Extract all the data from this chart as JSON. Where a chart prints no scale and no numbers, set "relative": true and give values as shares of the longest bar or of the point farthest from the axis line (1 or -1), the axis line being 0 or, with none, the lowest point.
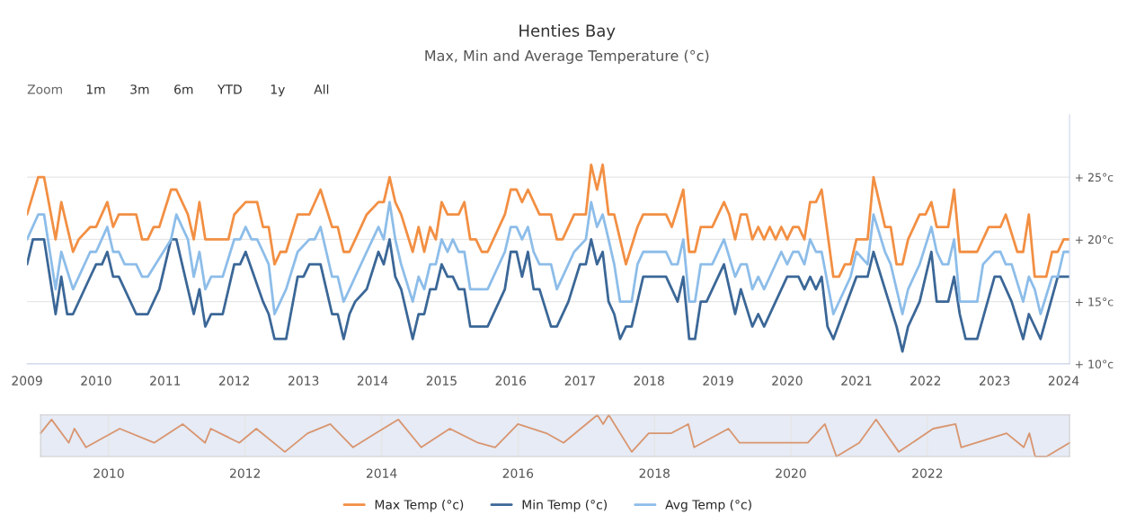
{
  "chart_data": [
    {
      "type": "line",
      "title": "Henties Bay",
      "subtitle": "Max, Min and Average Temperature (°c)",
      "annotations": [
        "Zoom",
        "1m",
        "3m",
        "6m",
        "YTD",
        "1y",
        "All"
      ],
      "xlim": [
        "2009-01",
        "2024-02"
      ],
      "xticks": [
        "2009",
        "2010",
        "2011",
        "2012",
        "2013",
        "2014",
        "2015",
        "2016",
        "2017",
        "2018",
        "2019",
        "2020",
        "2021",
        "2022",
        "2023",
        "2024"
      ],
      "ylim": [
        10,
        30
      ],
      "yticks": [
        {
          "value": 10,
          "label": "+ 10°c"
        },
        {
          "value": 15,
          "label": "+ 15°c"
        },
        {
          "value": 20,
          "label": "+ 20°c"
        },
        {
          "value": 25,
          "label": "+ 25°c"
        }
      ],
      "grid": "y",
      "legend": "bottom",
      "marker": "none",
      "line_style": "solid",
      "series": [
        {
          "name": "Max Temp (°c)",
          "color": "#f28f43",
          "x": [
            "2009-01",
            "2009-03",
            "2009-04",
            "2009-06",
            "2009-07",
            "2009-09",
            "2009-10",
            "2009-12",
            "2010-01",
            "2010-03",
            "2010-04",
            "2010-05",
            "2010-08",
            "2010-09",
            "2010-10",
            "2010-11",
            "2010-12",
            "2011-02",
            "2011-03",
            "2011-05",
            "2011-06",
            "2011-07",
            "2011-08",
            "2011-12",
            "2012-01",
            "2012-03",
            "2012-05",
            "2012-06",
            "2012-07",
            "2012-08",
            "2012-09",
            "2012-10",
            "2012-12",
            "2013-02",
            "2013-04",
            "2013-06",
            "2013-07",
            "2013-08",
            "2013-09",
            "2013-12",
            "2014-02",
            "2014-03",
            "2014-04",
            "2014-05",
            "2014-06",
            "2014-08",
            "2014-09",
            "2014-10",
            "2014-11",
            "2014-12",
            "2015-01",
            "2015-02",
            "2015-04",
            "2015-05",
            "2015-06",
            "2015-07",
            "2015-08",
            "2015-09",
            "2015-12",
            "2016-01",
            "2016-02",
            "2016-03",
            "2016-04",
            "2016-06",
            "2016-08",
            "2016-09",
            "2016-10",
            "2016-12",
            "2017-02",
            "2017-03",
            "2017-04",
            "2017-05",
            "2017-06",
            "2017-07",
            "2017-09",
            "2017-11",
            "2017-12",
            "2018-04",
            "2018-05",
            "2018-07",
            "2018-08",
            "2018-09",
            "2018-10",
            "2018-12",
            "2019-02",
            "2019-03",
            "2019-04",
            "2019-05",
            "2019-06",
            "2019-07",
            "2019-08",
            "2019-09",
            "2019-10",
            "2019-11",
            "2019-12",
            "2020-01",
            "2020-02",
            "2020-03",
            "2020-04",
            "2020-05",
            "2020-06",
            "2020-07",
            "2020-09",
            "2020-10",
            "2020-11",
            "2020-12",
            "2021-01",
            "2021-03",
            "2021-04",
            "2021-06",
            "2021-07",
            "2021-08",
            "2021-09",
            "2021-10",
            "2021-12",
            "2022-01",
            "2022-02",
            "2022-03",
            "2022-05",
            "2022-06",
            "2022-07",
            "2022-10",
            "2022-12",
            "2023-02",
            "2023-03",
            "2023-05",
            "2023-06",
            "2023-07",
            "2023-08",
            "2023-10",
            "2023-11",
            "2023-12",
            "2024-01",
            "2024-02"
          ],
          "values": [
            22,
            25,
            25,
            20,
            23,
            19,
            20,
            21,
            21,
            23,
            21,
            22,
            22,
            20,
            20,
            21,
            21,
            24,
            24,
            22,
            20,
            23,
            20,
            20,
            22,
            23,
            23,
            21,
            21,
            18,
            19,
            19,
            22,
            22,
            24,
            21,
            21,
            19,
            19,
            22,
            23,
            23,
            25,
            23,
            22,
            19,
            21,
            19,
            21,
            20,
            23,
            22,
            22,
            23,
            20,
            20,
            19,
            19,
            22,
            24,
            24,
            23,
            24,
            22,
            22,
            20,
            20,
            22,
            22,
            26,
            24,
            26,
            22,
            22,
            18,
            21,
            22,
            22,
            21,
            24,
            19,
            19,
            21,
            21,
            23,
            22,
            20,
            22,
            22,
            20,
            21,
            20,
            21,
            20,
            21,
            20,
            21,
            21,
            20,
            23,
            23,
            24,
            17,
            17,
            18,
            18,
            20,
            20,
            25,
            21,
            21,
            18,
            18,
            20,
            22,
            22,
            23,
            21,
            21,
            24,
            19,
            19,
            21,
            21,
            22,
            19,
            19,
            22,
            17,
            17,
            19,
            19,
            20,
            20
          ]
        },
        {
          "name": "Min Temp (°c)",
          "color": "#3b6797",
          "x": [
            "2009-01",
            "2009-02",
            "2009-04",
            "2009-06",
            "2009-07",
            "2009-08",
            "2009-09",
            "2009-12",
            "2010-01",
            "2010-02",
            "2010-03",
            "2010-04",
            "2010-05",
            "2010-08",
            "2010-10",
            "2010-12",
            "2011-02",
            "2011-03",
            "2011-06",
            "2011-07",
            "2011-08",
            "2011-09",
            "2011-11",
            "2012-01",
            "2012-02",
            "2012-03",
            "2012-06",
            "2012-07",
            "2012-08",
            "2012-10",
            "2012-12",
            "2013-01",
            "2013-02",
            "2013-04",
            "2013-06",
            "2013-07",
            "2013-08",
            "2013-09",
            "2013-10",
            "2013-12",
            "2014-02",
            "2014-03",
            "2014-04",
            "2014-05",
            "2014-06",
            "2014-08",
            "2014-09",
            "2014-10",
            "2014-11",
            "2014-12",
            "2015-01",
            "2015-02",
            "2015-03",
            "2015-04",
            "2015-05",
            "2015-06",
            "2015-09",
            "2015-12",
            "2016-01",
            "2016-02",
            "2016-03",
            "2016-04",
            "2016-05",
            "2016-06",
            "2016-08",
            "2016-09",
            "2016-11",
            "2017-01",
            "2017-02",
            "2017-03",
            "2017-04",
            "2017-05",
            "2017-06",
            "2017-07",
            "2017-08",
            "2017-09",
            "2017-10",
            "2017-12",
            "2018-04",
            "2018-06",
            "2018-07",
            "2018-08",
            "2018-09",
            "2018-10",
            "2018-11",
            "2019-02",
            "2019-04",
            "2019-05",
            "2019-07",
            "2019-08",
            "2019-09",
            "2020-01",
            "2020-03",
            "2020-04",
            "2020-05",
            "2020-06",
            "2020-07",
            "2020-08",
            "2020-09",
            "2021-01",
            "2021-03",
            "2021-04",
            "2021-06",
            "2021-08",
            "2021-09",
            "2021-10",
            "2021-12",
            "2022-02",
            "2022-03",
            "2022-05",
            "2022-06",
            "2022-07",
            "2022-08",
            "2022-10",
            "2023-01",
            "2023-02",
            "2023-04",
            "2023-06",
            "2023-07",
            "2023-09",
            "2023-12",
            "2024-02"
          ],
          "values": [
            18,
            20,
            20,
            14,
            17,
            14,
            14,
            17,
            18,
            18,
            19,
            17,
            17,
            14,
            14,
            16,
            20,
            20,
            14,
            16,
            13,
            14,
            14,
            18,
            18,
            19,
            15,
            14,
            12,
            12,
            17,
            17,
            18,
            18,
            14,
            14,
            12,
            14,
            15,
            16,
            19,
            18,
            20,
            17,
            16,
            12,
            14,
            14,
            16,
            16,
            18,
            17,
            17,
            16,
            16,
            13,
            13,
            16,
            19,
            19,
            17,
            19,
            16,
            16,
            13,
            13,
            15,
            18,
            18,
            20,
            18,
            19,
            15,
            14,
            12,
            13,
            13,
            17,
            17,
            15,
            17,
            12,
            12,
            15,
            15,
            18,
            14,
            16,
            13,
            14,
            13,
            17,
            17,
            16,
            17,
            16,
            17,
            13,
            12,
            17,
            17,
            19,
            16,
            13,
            11,
            13,
            15,
            19,
            15,
            15,
            17,
            14,
            12,
            12,
            17,
            17,
            15,
            12,
            14,
            12,
            17,
            17
          ]
        },
        {
          "name": "Avg Temp (°c)",
          "color": "#8dbde9",
          "x": [
            "2009-01",
            "2009-03",
            "2009-04",
            "2009-06",
            "2009-07",
            "2009-09",
            "2009-12",
            "2010-01",
            "2010-03",
            "2010-04",
            "2010-05",
            "2010-06",
            "2010-08",
            "2010-09",
            "2010-10",
            "2011-02",
            "2011-03",
            "2011-05",
            "2011-06",
            "2011-07",
            "2011-08",
            "2011-09",
            "2011-11",
            "2012-01",
            "2012-02",
            "2012-03",
            "2012-04",
            "2012-05",
            "2012-06",
            "2012-07",
            "2012-08",
            "2012-10",
            "2012-12",
            "2013-02",
            "2013-03",
            "2013-04",
            "2013-06",
            "2013-07",
            "2013-08",
            "2013-09",
            "2013-10",
            "2013-12",
            "2014-01",
            "2014-02",
            "2014-03",
            "2014-04",
            "2014-05",
            "2014-06",
            "2014-08",
            "2014-09",
            "2014-10",
            "2014-11",
            "2014-12",
            "2015-01",
            "2015-02",
            "2015-03",
            "2015-04",
            "2015-05",
            "2015-06",
            "2015-09",
            "2015-12",
            "2016-01",
            "2016-02",
            "2016-03",
            "2016-04",
            "2016-05",
            "2016-06",
            "2016-08",
            "2016-09",
            "2016-12",
            "2017-02",
            "2017-03",
            "2017-04",
            "2017-05",
            "2017-06",
            "2017-07",
            "2017-08",
            "2017-10",
            "2017-11",
            "2017-12",
            "2018-04",
            "2018-05",
            "2018-06",
            "2018-07",
            "2018-08",
            "2018-09",
            "2018-10",
            "2018-12",
            "2019-02",
            "2019-04",
            "2019-05",
            "2019-06",
            "2019-07",
            "2019-08",
            "2019-09",
            "2019-12",
            "2020-01",
            "2020-02",
            "2020-03",
            "2020-04",
            "2020-05",
            "2020-06",
            "2020-07",
            "2020-09",
            "2020-12",
            "2021-01",
            "2021-03",
            "2021-04",
            "2021-06",
            "2021-07",
            "2021-09",
            "2021-10",
            "2021-12",
            "2022-02",
            "2022-03",
            "2022-04",
            "2022-05",
            "2022-06",
            "2022-07",
            "2022-10",
            "2022-11",
            "2023-01",
            "2023-02",
            "2023-03",
            "2023-04",
            "2023-06",
            "2023-07",
            "2023-08",
            "2023-09",
            "2023-11",
            "2023-12",
            "2024-01",
            "2024-02"
          ],
          "values": [
            20,
            22,
            22,
            16,
            19,
            16,
            19,
            19,
            21,
            19,
            19,
            18,
            18,
            17,
            17,
            20,
            22,
            20,
            17,
            19,
            16,
            17,
            17,
            20,
            20,
            21,
            20,
            20,
            19,
            18,
            14,
            16,
            19,
            20,
            20,
            21,
            17,
            17,
            15,
            16,
            17,
            19,
            20,
            21,
            20,
            23,
            20,
            18,
            15,
            17,
            16,
            18,
            18,
            20,
            19,
            20,
            19,
            19,
            16,
            16,
            19,
            21,
            21,
            20,
            21,
            19,
            18,
            18,
            16,
            19,
            20,
            23,
            21,
            22,
            20,
            18,
            15,
            15,
            18,
            19,
            19,
            18,
            18,
            20,
            15,
            15,
            18,
            18,
            20,
            17,
            18,
            18,
            16,
            17,
            16,
            19,
            18,
            19,
            19,
            18,
            20,
            19,
            19,
            14,
            17,
            19,
            18,
            22,
            19,
            18,
            14,
            16,
            18,
            21,
            19,
            18,
            18,
            20,
            15,
            15,
            18,
            19,
            19,
            18,
            18,
            15,
            17,
            16,
            14,
            17,
            17,
            19,
            19
          ]
        }
      ]
    },
    {
      "type": "line",
      "relative": true,
      "tick_labels": "x",
      "grid": "x",
      "marker": "none",
      "line_style": "solid",
      "xlim": [
        "2009-01",
        "2024-02"
      ],
      "xticks": [
        "2010",
        "2012",
        "2014",
        "2016",
        "2018",
        "2020",
        "2022"
      ],
      "series": [
        {
          "color": "#d9956f",
          "x": [
            "2009-01",
            "2009-03",
            "2009-06",
            "2009-07",
            "2009-09",
            "2010-03",
            "2010-09",
            "2011-02",
            "2011-06",
            "2011-07",
            "2011-12",
            "2012-03",
            "2012-08",
            "2012-12",
            "2013-04",
            "2013-08",
            "2013-12",
            "2014-04",
            "2014-08",
            "2015-01",
            "2015-06",
            "2015-09",
            "2016-01",
            "2016-06",
            "2016-09",
            "2017-03",
            "2017-04",
            "2017-05",
            "2017-09",
            "2017-12",
            "2018-04",
            "2018-07",
            "2018-08",
            "2019-02",
            "2019-04",
            "2019-11",
            "2020-04",
            "2020-07",
            "2020-09",
            "2021-01",
            "2021-04",
            "2021-08",
            "2022-02",
            "2022-06",
            "2022-07",
            "2023-03",
            "2023-06",
            "2023-07",
            "2023-08",
            "2023-10",
            "2024-02"
          ],
          "values": [
            0.56,
            0.89,
            0.33,
            0.67,
            0.22,
            0.67,
            0.33,
            0.78,
            0.33,
            0.67,
            0.33,
            0.67,
            0.11,
            0.56,
            0.78,
            0.22,
            0.56,
            0.89,
            0.22,
            0.67,
            0.33,
            0.22,
            0.78,
            0.56,
            0.33,
            1,
            0.78,
            1,
            0.11,
            0.56,
            0.56,
            0.78,
            0.22,
            0.67,
            0.33,
            0.33,
            0.33,
            0.78,
            0,
            0.33,
            0.89,
            0.11,
            0.67,
            0.78,
            0.22,
            0.56,
            0.22,
            0.56,
            0,
            0,
            0.33
          ]
        }
      ]
    }
  ]
}
